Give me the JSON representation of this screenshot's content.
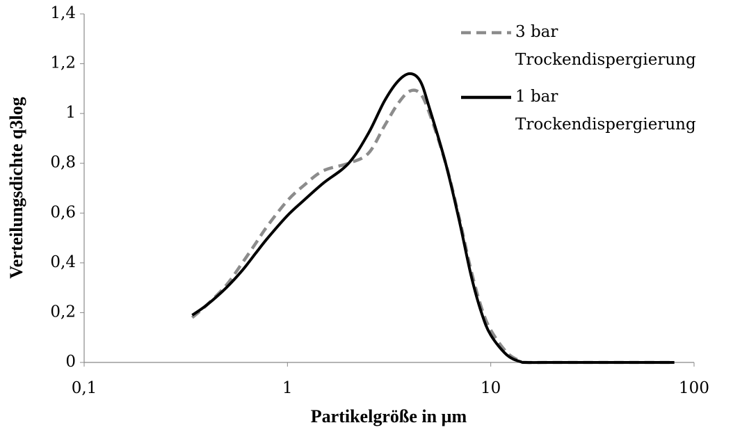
{
  "chart_data": {
    "type": "line",
    "xlabel": "Partikelgröße in µm",
    "ylabel": "Verteilungsdichte q3log",
    "xscale": "log",
    "legend": "upper right",
    "x": [
      0.34,
      0.4,
      0.5,
      0.6,
      0.7,
      0.8,
      1,
      1.2,
      1.5,
      2,
      2.5,
      3,
      3.5,
      4,
      4.5,
      5,
      6,
      7,
      8,
      9,
      10,
      12,
      14,
      15,
      20,
      30,
      50,
      80
    ],
    "series": [
      {
        "name": "3 bar Trockendispergierung",
        "color": "#8c8c8c",
        "linestyle": "dashed",
        "values": [
          0.18,
          0.23,
          0.31,
          0.4,
          0.48,
          0.55,
          0.65,
          0.71,
          0.77,
          0.8,
          0.84,
          0.95,
          1.04,
          1.09,
          1.08,
          1.0,
          0.8,
          0.58,
          0.37,
          0.22,
          0.13,
          0.04,
          0.005,
          0,
          0,
          0,
          0,
          0
        ]
      },
      {
        "name": "1 bar Trockendispergierung",
        "color": "#000000",
        "linestyle": "solid",
        "values": [
          0.19,
          0.23,
          0.3,
          0.37,
          0.44,
          0.5,
          0.59,
          0.65,
          0.72,
          0.8,
          0.92,
          1.05,
          1.13,
          1.16,
          1.13,
          1.02,
          0.8,
          0.57,
          0.35,
          0.2,
          0.11,
          0.03,
          0.003,
          0,
          0,
          0,
          0,
          0
        ]
      }
    ],
    "xlim": [
      0.1,
      100
    ],
    "xticks": [
      {
        "value": 0.1,
        "label": "0,1"
      },
      1,
      10,
      100
    ],
    "ylim": [
      0,
      1.4
    ],
    "yticks": [
      0,
      {
        "value": 0.2,
        "label": "0,2"
      },
      {
        "value": 0.4,
        "label": "0,4"
      },
      {
        "value": 0.6,
        "label": "0,6"
      },
      {
        "value": 0.8,
        "label": "0,8"
      },
      1,
      {
        "value": 1.2,
        "label": "1,2"
      },
      {
        "value": 1.4,
        "label": "1,4"
      }
    ],
    "grid": false
  }
}
